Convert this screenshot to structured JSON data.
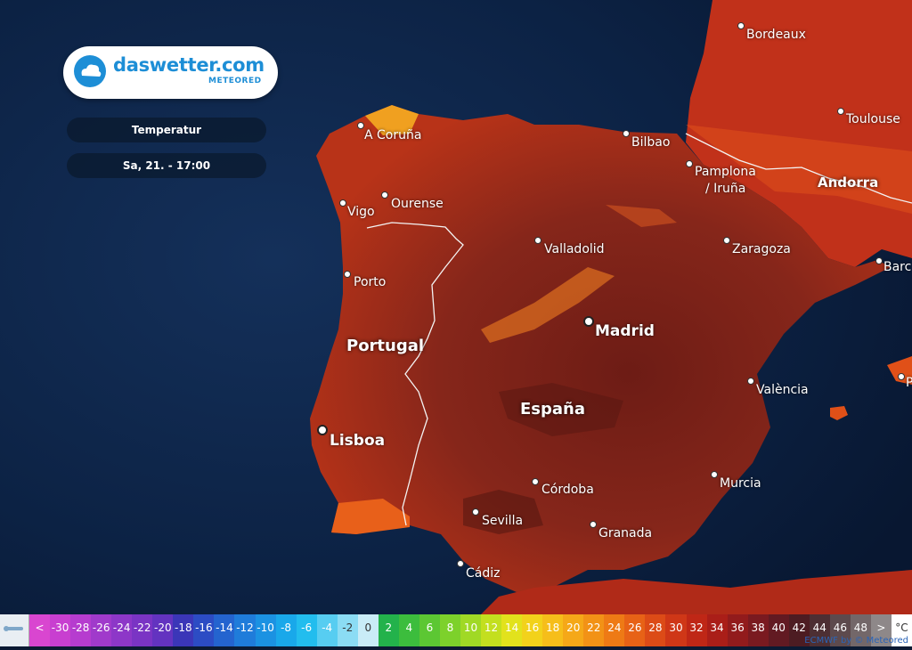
{
  "brand": {
    "name": "daswetter.com",
    "sub": "METEORED"
  },
  "panel": {
    "layer": "Temperatur",
    "time": "Sa, 21. - 17:00"
  },
  "countries": [
    {
      "name": "Portugal"
    },
    {
      "name": "España"
    },
    {
      "name": "Andorra"
    }
  ],
  "cities": [
    {
      "name": "Bordeaux"
    },
    {
      "name": "Toulouse"
    },
    {
      "name": "A Coruña"
    },
    {
      "name": "Bilbao"
    },
    {
      "name": "Pamplona"
    },
    {
      "name": "/ Iruña"
    },
    {
      "name": "Vigo"
    },
    {
      "name": "Ourense"
    },
    {
      "name": "Valladolid"
    },
    {
      "name": "Zaragoza"
    },
    {
      "name": "Barc"
    },
    {
      "name": "Porto"
    },
    {
      "name": "Madrid"
    },
    {
      "name": "València"
    },
    {
      "name": "Lisboa"
    },
    {
      "name": "Córdoba"
    },
    {
      "name": "Murcia"
    },
    {
      "name": "Sevilla"
    },
    {
      "name": "Granada"
    },
    {
      "name": "Cádiz"
    },
    {
      "name": "P"
    }
  ],
  "legend": {
    "cells": [
      {
        "label": "<",
        "color": "#d946d0"
      },
      {
        "label": "-30",
        "color": "#c83fd0"
      },
      {
        "label": "-28",
        "color": "#b63ccf"
      },
      {
        "label": "-26",
        "color": "#a03acb"
      },
      {
        "label": "-24",
        "color": "#8d37c8"
      },
      {
        "label": "-22",
        "color": "#7a34c4"
      },
      {
        "label": "-20",
        "color": "#6333c0"
      },
      {
        "label": "-18",
        "color": "#3b36b8"
      },
      {
        "label": "-16",
        "color": "#2c4cc4"
      },
      {
        "label": "-14",
        "color": "#2464cf"
      },
      {
        "label": "-12",
        "color": "#1f7cda"
      },
      {
        "label": "-10",
        "color": "#1b92e2"
      },
      {
        "label": "-8",
        "color": "#19a8ea"
      },
      {
        "label": "-6",
        "color": "#22bdee"
      },
      {
        "label": "-4",
        "color": "#57cdf1"
      },
      {
        "label": "-2",
        "color": "#8bdcf4"
      },
      {
        "label": "0",
        "color": "#c9ecf7"
      },
      {
        "label": "2",
        "color": "#23b24b"
      },
      {
        "label": "4",
        "color": "#3cbd3d"
      },
      {
        "label": "6",
        "color": "#5cc733"
      },
      {
        "label": "8",
        "color": "#7dd12b"
      },
      {
        "label": "10",
        "color": "#a0d925"
      },
      {
        "label": "12",
        "color": "#c3df1f"
      },
      {
        "label": "14",
        "color": "#e2e21c"
      },
      {
        "label": "16",
        "color": "#f2d21b"
      },
      {
        "label": "18",
        "color": "#f6be1a"
      },
      {
        "label": "20",
        "color": "#f5a818"
      },
      {
        "label": "22",
        "color": "#f29216"
      },
      {
        "label": "24",
        "color": "#ee7a15"
      },
      {
        "label": "26",
        "color": "#e76216"
      },
      {
        "label": "28",
        "color": "#dc4b17"
      },
      {
        "label": "30",
        "color": "#cf3717"
      },
      {
        "label": "32",
        "color": "#bf2716"
      },
      {
        "label": "34",
        "color": "#aa1e18"
      },
      {
        "label": "36",
        "color": "#921b1c"
      },
      {
        "label": "38",
        "color": "#7a1a20"
      },
      {
        "label": "40",
        "color": "#621a22"
      },
      {
        "label": "42",
        "color": "#4d1c22"
      },
      {
        "label": "44",
        "color": "#4d2f33"
      },
      {
        "label": "46",
        "color": "#5d4a4d"
      },
      {
        "label": "48",
        "color": "#736769"
      },
      {
        "label": ">",
        "color": "#8e8889"
      },
      {
        "label": "°C",
        "color": "#ffffff"
      }
    ]
  },
  "credit": "ECMWF by © Meteored",
  "colors": {
    "sea": "#0d2447",
    "land_hot": "#7c2418",
    "brand": "#1d8ed6"
  }
}
